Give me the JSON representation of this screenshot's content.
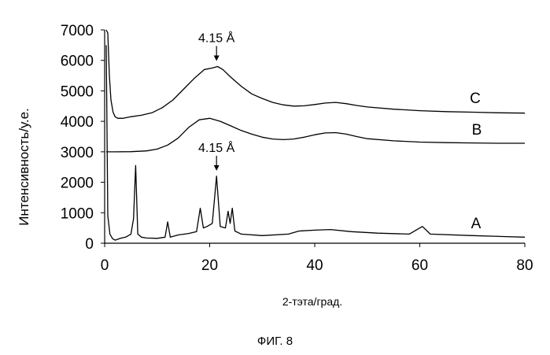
{
  "chart_data": {
    "type": "line",
    "xlabel": "2-тэта/град.",
    "ylabel": "Интенсивность/у.е.",
    "xlim": [
      0,
      80
    ],
    "ylim": [
      0,
      7000
    ],
    "xticks": [
      "0",
      "20",
      "40",
      "60",
      "80"
    ],
    "yticks": [
      "0",
      "1000",
      "2000",
      "3000",
      "4000",
      "5000",
      "6000",
      "7000"
    ],
    "grid": false,
    "legend": "none",
    "series": [
      {
        "name": "A",
        "x": [
          0.3,
          0.6,
          1.0,
          1.5,
          2.0,
          3.0,
          4.0,
          5.0,
          5.5,
          5.9,
          6.3,
          7.0,
          8.0,
          10.0,
          11.5,
          12.0,
          12.5,
          14.0,
          16.0,
          17.5,
          18.2,
          18.8,
          19.5,
          20.5,
          21.3,
          22.0,
          23.0,
          23.5,
          23.9,
          24.3,
          24.8,
          26.0,
          30.0,
          35.0,
          37.0,
          40.0,
          43.0,
          47.0,
          52.0,
          58.0,
          60.5,
          62.0,
          70.0,
          80.0
        ],
        "y": [
          6500,
          900,
          300,
          150,
          100,
          160,
          200,
          300,
          800,
          2550,
          300,
          200,
          170,
          160,
          200,
          700,
          200,
          270,
          320,
          380,
          1150,
          500,
          550,
          650,
          2200,
          550,
          500,
          1050,
          650,
          1150,
          400,
          300,
          250,
          300,
          400,
          430,
          450,
          380,
          330,
          300,
          550,
          300,
          250,
          200
        ]
      },
      {
        "name": "B",
        "x": [
          0.3,
          2.0,
          5.0,
          8.0,
          10.0,
          12.0,
          14.0,
          16.0,
          18.0,
          20.0,
          22.0,
          24.0,
          26.0,
          28.0,
          30.0,
          32.0,
          34.0,
          36.0,
          38.0,
          40.0,
          42.0,
          44.0,
          46.0,
          48.0,
          50.0,
          55.0,
          60.0,
          65.0,
          70.0,
          75.0,
          80.0
        ],
        "y": [
          3000,
          3000,
          3005,
          3030,
          3090,
          3220,
          3450,
          3800,
          4050,
          4100,
          4000,
          3850,
          3700,
          3580,
          3480,
          3420,
          3400,
          3420,
          3480,
          3560,
          3620,
          3630,
          3580,
          3500,
          3430,
          3360,
          3320,
          3300,
          3290,
          3280,
          3280
        ]
      },
      {
        "name": "C",
        "x": [
          0.3,
          0.6,
          0.9,
          1.2,
          1.6,
          2.0,
          2.5,
          3.5,
          5.0,
          7.0,
          9.0,
          11.0,
          13.0,
          15.0,
          17.0,
          19.0,
          20.5,
          21.5,
          22.5,
          24.0,
          26.0,
          28.0,
          30.0,
          32.0,
          34.0,
          36.0,
          38.0,
          40.0,
          42.0,
          44.0,
          46.0,
          48.0,
          50.0,
          55.0,
          60.0,
          65.0,
          70.0,
          75.0,
          80.0
        ],
        "y": [
          7000,
          6900,
          5500,
          4700,
          4300,
          4150,
          4100,
          4100,
          4150,
          4200,
          4280,
          4450,
          4700,
          5050,
          5400,
          5700,
          5750,
          5800,
          5700,
          5450,
          5150,
          4900,
          4750,
          4620,
          4540,
          4500,
          4510,
          4550,
          4600,
          4620,
          4580,
          4520,
          4470,
          4400,
          4350,
          4320,
          4300,
          4280,
          4270
        ]
      }
    ],
    "annotations": [
      {
        "text": "4.15 Å",
        "x": 21.3,
        "y": 6600
      },
      {
        "text": "4.15 Å",
        "x": 21.3,
        "y": 3000
      }
    ]
  },
  "caption": "ФИГ. 8"
}
